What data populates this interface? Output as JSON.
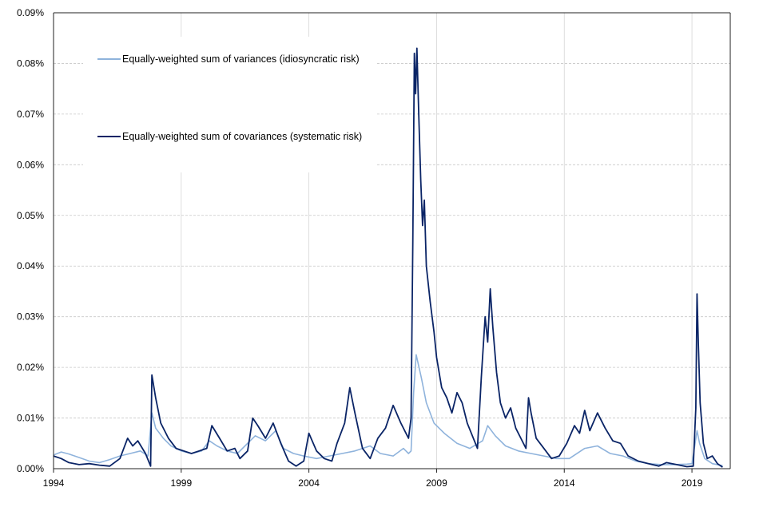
{
  "chart_data": {
    "type": "line",
    "title": "",
    "xlabel": "",
    "ylabel": "",
    "xlim": [
      1994,
      2020.5
    ],
    "ylim": [
      0,
      0.09
    ],
    "x_ticks": [
      1994,
      1999,
      2004,
      2009,
      2014,
      2019
    ],
    "y_ticks": [
      0,
      0.01,
      0.02,
      0.03,
      0.04,
      0.05,
      0.06,
      0.07,
      0.08,
      0.09
    ],
    "y_tick_labels": [
      "0.00%",
      "0.01%",
      "0.02%",
      "0.03%",
      "0.04%",
      "0.05%",
      "0.06%",
      "0.07%",
      "0.08%",
      "0.09%"
    ],
    "x_tick_labels": [
      "1994",
      "1999",
      "2004",
      "2009",
      "2014",
      "2019"
    ],
    "grid": true,
    "legend_position": "top-left",
    "series": [
      {
        "name": "Equally-weighted sum of variances (idiosyncratic risk)",
        "color": "#8fb3dc",
        "points": [
          [
            1994.0,
            0.0027
          ],
          [
            1994.3,
            0.0033
          ],
          [
            1994.6,
            0.0029
          ],
          [
            1995.0,
            0.0022
          ],
          [
            1995.4,
            0.0015
          ],
          [
            1995.8,
            0.0012
          ],
          [
            1996.2,
            0.0018
          ],
          [
            1996.6,
            0.0025
          ],
          [
            1997.0,
            0.003
          ],
          [
            1997.4,
            0.0035
          ],
          [
            1997.7,
            0.0025
          ],
          [
            1997.85,
            0.011
          ],
          [
            1998.0,
            0.008
          ],
          [
            1998.3,
            0.006
          ],
          [
            1998.6,
            0.0045
          ],
          [
            1999.0,
            0.0035
          ],
          [
            1999.4,
            0.003
          ],
          [
            1999.8,
            0.0035
          ],
          [
            2000.1,
            0.0055
          ],
          [
            2000.4,
            0.0045
          ],
          [
            2000.8,
            0.0035
          ],
          [
            2001.2,
            0.003
          ],
          [
            2001.7,
            0.0055
          ],
          [
            2001.9,
            0.0065
          ],
          [
            2002.3,
            0.0055
          ],
          [
            2002.7,
            0.0075
          ],
          [
            2003.0,
            0.004
          ],
          [
            2003.4,
            0.003
          ],
          [
            2003.8,
            0.0025
          ],
          [
            2004.3,
            0.002
          ],
          [
            2004.8,
            0.0025
          ],
          [
            2005.3,
            0.003
          ],
          [
            2005.8,
            0.0035
          ],
          [
            2006.4,
            0.0045
          ],
          [
            2006.8,
            0.003
          ],
          [
            2007.3,
            0.0025
          ],
          [
            2007.7,
            0.004
          ],
          [
            2007.9,
            0.003
          ],
          [
            2008.0,
            0.0035
          ],
          [
            2008.1,
            0.015
          ],
          [
            2008.2,
            0.0225
          ],
          [
            2008.4,
            0.018
          ],
          [
            2008.6,
            0.013
          ],
          [
            2008.9,
            0.009
          ],
          [
            2009.3,
            0.007
          ],
          [
            2009.8,
            0.005
          ],
          [
            2010.3,
            0.004
          ],
          [
            2010.8,
            0.0055
          ],
          [
            2011.0,
            0.0085
          ],
          [
            2011.3,
            0.0065
          ],
          [
            2011.7,
            0.0045
          ],
          [
            2012.2,
            0.0035
          ],
          [
            2012.7,
            0.003
          ],
          [
            2013.2,
            0.0025
          ],
          [
            2013.7,
            0.002
          ],
          [
            2014.2,
            0.002
          ],
          [
            2014.8,
            0.004
          ],
          [
            2015.3,
            0.0045
          ],
          [
            2015.8,
            0.003
          ],
          [
            2016.3,
            0.0025
          ],
          [
            2016.8,
            0.0015
          ],
          [
            2017.3,
            0.001
          ],
          [
            2017.8,
            0.0008
          ],
          [
            2018.3,
            0.0008
          ],
          [
            2018.8,
            0.0009
          ],
          [
            2019.0,
            0.001
          ],
          [
            2019.2,
            0.0075
          ],
          [
            2019.3,
            0.005
          ],
          [
            2019.5,
            0.002
          ],
          [
            2019.8,
            0.001
          ],
          [
            2020.2,
            0.0006
          ]
        ]
      },
      {
        "name": "Equally-weighted sum of covariances (systematic risk)",
        "color": "#0a2466",
        "points": [
          [
            1994.0,
            0.0025
          ],
          [
            1994.3,
            0.002
          ],
          [
            1994.6,
            0.0012
          ],
          [
            1995.0,
            0.0008
          ],
          [
            1995.4,
            0.001
          ],
          [
            1995.8,
            0.0007
          ],
          [
            1996.2,
            0.0005
          ],
          [
            1996.6,
            0.002
          ],
          [
            1996.9,
            0.006
          ],
          [
            1997.1,
            0.0045
          ],
          [
            1997.3,
            0.0055
          ],
          [
            1997.6,
            0.003
          ],
          [
            1997.8,
            0.0005
          ],
          [
            1997.85,
            0.0185
          ],
          [
            1998.0,
            0.014
          ],
          [
            1998.2,
            0.009
          ],
          [
            1998.5,
            0.006
          ],
          [
            1998.8,
            0.004
          ],
          [
            1999.1,
            0.0035
          ],
          [
            1999.4,
            0.003
          ],
          [
            1999.7,
            0.0035
          ],
          [
            2000.0,
            0.004
          ],
          [
            2000.2,
            0.0085
          ],
          [
            2000.5,
            0.006
          ],
          [
            2000.8,
            0.0035
          ],
          [
            2001.1,
            0.004
          ],
          [
            2001.3,
            0.002
          ],
          [
            2001.6,
            0.0035
          ],
          [
            2001.8,
            0.01
          ],
          [
            2002.0,
            0.0085
          ],
          [
            2002.3,
            0.006
          ],
          [
            2002.6,
            0.009
          ],
          [
            2002.9,
            0.005
          ],
          [
            2003.2,
            0.0015
          ],
          [
            2003.5,
            0.0005
          ],
          [
            2003.8,
            0.0015
          ],
          [
            2004.0,
            0.007
          ],
          [
            2004.3,
            0.0035
          ],
          [
            2004.6,
            0.002
          ],
          [
            2004.9,
            0.0015
          ],
          [
            2005.1,
            0.005
          ],
          [
            2005.4,
            0.009
          ],
          [
            2005.6,
            0.016
          ],
          [
            2005.8,
            0.011
          ],
          [
            2006.1,
            0.004
          ],
          [
            2006.4,
            0.002
          ],
          [
            2006.7,
            0.006
          ],
          [
            2007.0,
            0.008
          ],
          [
            2007.3,
            0.0125
          ],
          [
            2007.6,
            0.009
          ],
          [
            2007.9,
            0.006
          ],
          [
            2008.0,
            0.01
          ],
          [
            2008.07,
            0.045
          ],
          [
            2008.13,
            0.082
          ],
          [
            2008.18,
            0.074
          ],
          [
            2008.23,
            0.083
          ],
          [
            2008.3,
            0.07
          ],
          [
            2008.38,
            0.057
          ],
          [
            2008.45,
            0.048
          ],
          [
            2008.52,
            0.053
          ],
          [
            2008.6,
            0.04
          ],
          [
            2008.75,
            0.033
          ],
          [
            2008.9,
            0.027
          ],
          [
            2009.0,
            0.022
          ],
          [
            2009.2,
            0.016
          ],
          [
            2009.4,
            0.014
          ],
          [
            2009.6,
            0.011
          ],
          [
            2009.8,
            0.015
          ],
          [
            2010.0,
            0.013
          ],
          [
            2010.2,
            0.009
          ],
          [
            2010.4,
            0.0065
          ],
          [
            2010.6,
            0.004
          ],
          [
            2010.75,
            0.018
          ],
          [
            2010.9,
            0.03
          ],
          [
            2011.0,
            0.025
          ],
          [
            2011.1,
            0.0355
          ],
          [
            2011.2,
            0.028
          ],
          [
            2011.35,
            0.019
          ],
          [
            2011.5,
            0.013
          ],
          [
            2011.7,
            0.01
          ],
          [
            2011.9,
            0.012
          ],
          [
            2012.1,
            0.008
          ],
          [
            2012.3,
            0.006
          ],
          [
            2012.5,
            0.004
          ],
          [
            2012.6,
            0.014
          ],
          [
            2012.7,
            0.011
          ],
          [
            2012.9,
            0.006
          ],
          [
            2013.2,
            0.004
          ],
          [
            2013.5,
            0.002
          ],
          [
            2013.8,
            0.0025
          ],
          [
            2014.1,
            0.005
          ],
          [
            2014.4,
            0.0085
          ],
          [
            2014.6,
            0.007
          ],
          [
            2014.8,
            0.0115
          ],
          [
            2015.0,
            0.0075
          ],
          [
            2015.3,
            0.011
          ],
          [
            2015.6,
            0.008
          ],
          [
            2015.9,
            0.0055
          ],
          [
            2016.2,
            0.005
          ],
          [
            2016.5,
            0.0025
          ],
          [
            2016.9,
            0.0015
          ],
          [
            2017.3,
            0.001
          ],
          [
            2017.7,
            0.0005
          ],
          [
            2018.0,
            0.0012
          ],
          [
            2018.4,
            0.0008
          ],
          [
            2018.8,
            0.0004
          ],
          [
            2019.05,
            0.0005
          ],
          [
            2019.15,
            0.012
          ],
          [
            2019.2,
            0.0345
          ],
          [
            2019.25,
            0.025
          ],
          [
            2019.32,
            0.013
          ],
          [
            2019.45,
            0.005
          ],
          [
            2019.6,
            0.002
          ],
          [
            2019.8,
            0.0025
          ],
          [
            2020.0,
            0.001
          ],
          [
            2020.2,
            0.0003
          ]
        ]
      }
    ]
  }
}
